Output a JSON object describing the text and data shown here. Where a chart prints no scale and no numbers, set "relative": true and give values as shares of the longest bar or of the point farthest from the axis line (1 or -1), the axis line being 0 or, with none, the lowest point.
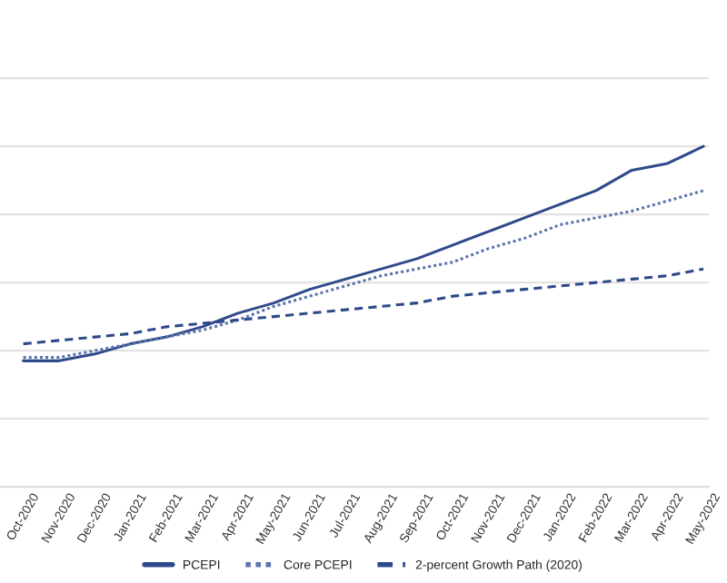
{
  "chart_data": {
    "type": "line",
    "relative": true,
    "grid": "y",
    "legend": "bottom",
    "categories": [
      "Oct-2020",
      "Nov-2020",
      "Dec-2020",
      "Jan-2021",
      "Feb-2021",
      "Mar-2021",
      "Apr-2021",
      "May-2021",
      "Jun-2021",
      "Jul-2021",
      "Aug-2021",
      "Sep-2021",
      "Oct-2021",
      "Nov-2021",
      "Dec-2021",
      "Jan-2022",
      "Feb-2022",
      "Mar-2022",
      "Apr-2022",
      "May-2022"
    ],
    "series": [
      {
        "name": "PCEPI",
        "color": "#2f4a8a",
        "line_style": "solid",
        "values": [
          0.37,
          0.37,
          0.39,
          0.42,
          0.44,
          0.47,
          0.51,
          0.54,
          0.58,
          0.61,
          0.64,
          0.67,
          0.71,
          0.75,
          0.79,
          0.83,
          0.87,
          0.93,
          0.95,
          1.0
        ]
      },
      {
        "name": "Core PCEPI",
        "color": "#5b74ab",
        "line_style": "dotted",
        "values": [
          0.38,
          0.38,
          0.4,
          0.42,
          0.44,
          0.46,
          0.49,
          0.53,
          0.56,
          0.59,
          0.62,
          0.64,
          0.66,
          0.7,
          0.73,
          0.77,
          0.79,
          0.81,
          0.84,
          0.87
        ]
      },
      {
        "name": "2-percent Growth Path (2020)",
        "color": "#2f4a8a",
        "line_style": "dashed",
        "values": [
          0.42,
          0.43,
          0.44,
          0.45,
          0.47,
          0.48,
          0.49,
          0.5,
          0.51,
          0.52,
          0.53,
          0.54,
          0.56,
          0.57,
          0.58,
          0.59,
          0.6,
          0.61,
          0.62,
          0.64
        ]
      }
    ]
  }
}
